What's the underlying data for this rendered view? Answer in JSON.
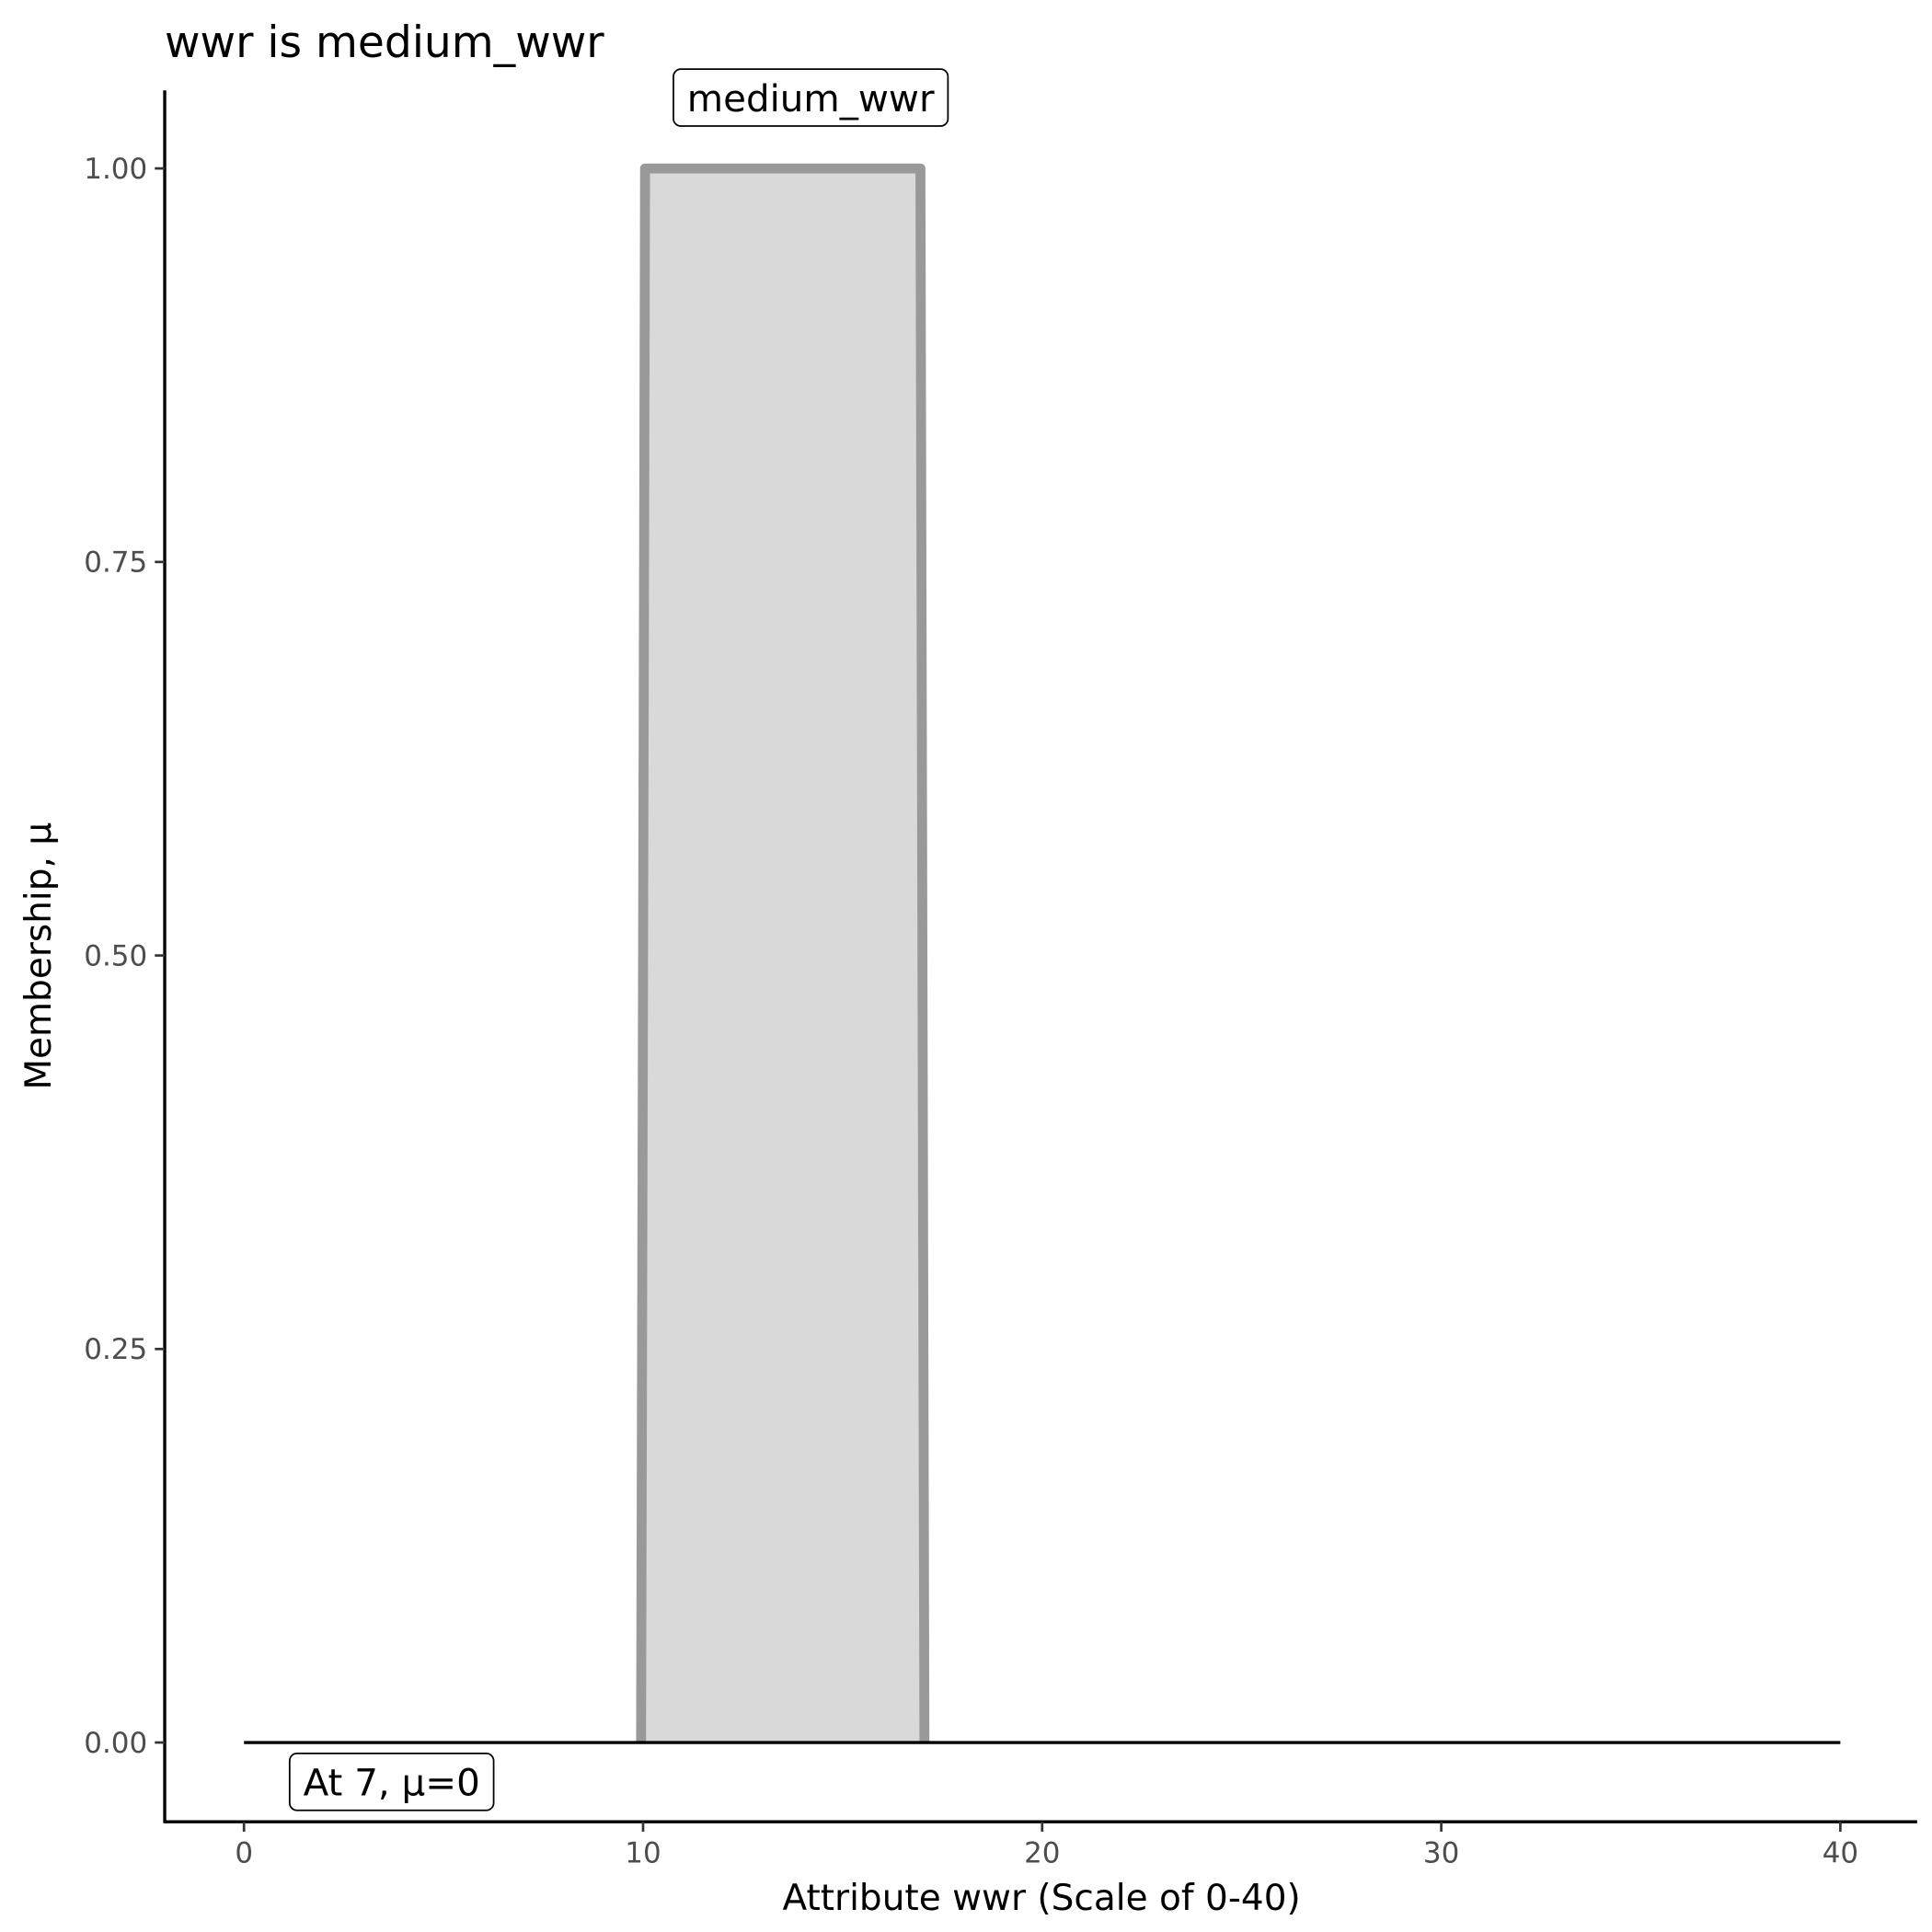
{
  "chart_data": {
    "type": "area",
    "title": "wwr is medium_wwr",
    "xlabel": "Attribute wwr (Scale of 0-40)",
    "ylabel": "Membership, μ",
    "xlim": [
      -2,
      42
    ],
    "ylim": [
      -0.05,
      1.05
    ],
    "x_ticks": [
      0,
      10,
      20,
      30,
      40
    ],
    "x_tick_labels": [
      "0",
      "10",
      "20",
      "30",
      "40"
    ],
    "y_ticks": [
      0,
      0.25,
      0.5,
      0.75,
      1
    ],
    "y_tick_labels": [
      "0.00",
      "0.25",
      "0.50",
      "0.75",
      "1.00"
    ],
    "grid": false,
    "series": [
      {
        "name": "medium_wwr",
        "x": [
          9.95,
          10.05,
          16.95,
          17.05
        ],
        "y": [
          0,
          1,
          1,
          0
        ],
        "fill": "#d9d9d9",
        "stroke": "#999999"
      }
    ],
    "reference_line": {
      "x": [
        0,
        40
      ],
      "y": [
        0,
        0
      ],
      "color": "#000000"
    },
    "annotations": [
      {
        "text": "medium_wwr",
        "x": 14.2,
        "y": 1.045
      },
      {
        "text": "At 7, μ=0",
        "x": 3.7,
        "y": -0.025
      }
    ]
  }
}
